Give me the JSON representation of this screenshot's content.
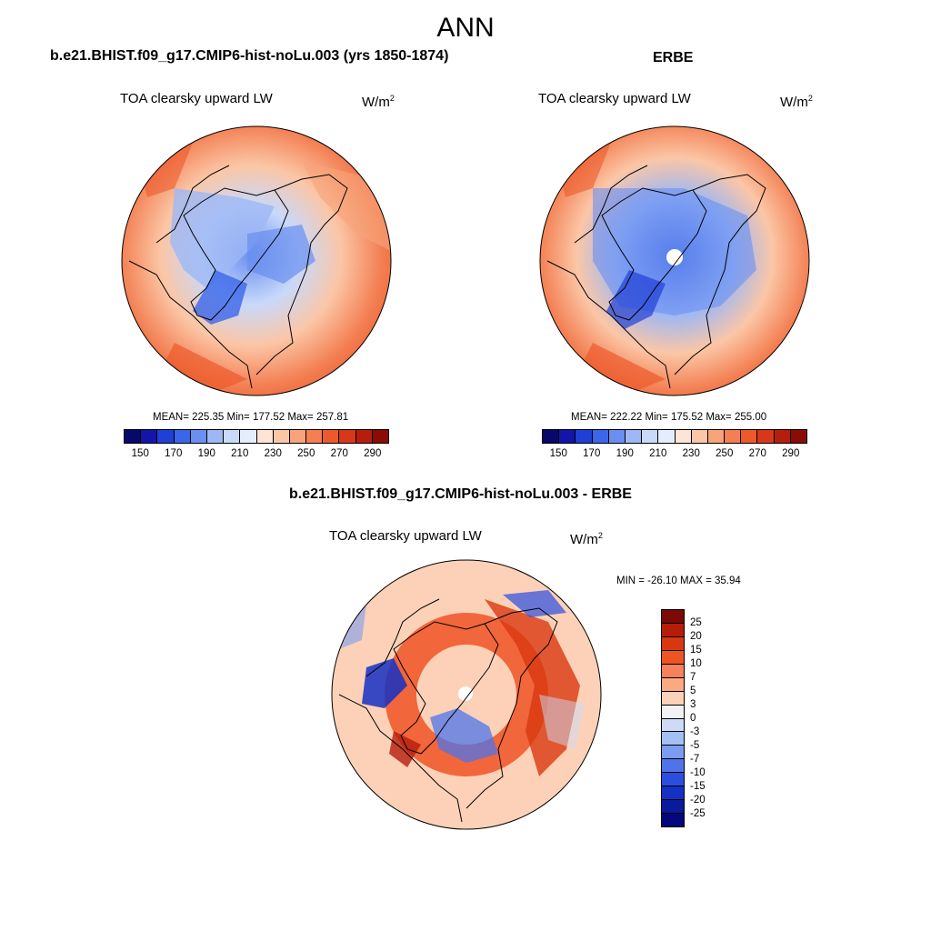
{
  "figure": {
    "title": "ANN"
  },
  "panels": [
    {
      "title": "b.e21.BHIST.f09_g17.CMIP6-hist-noLu.003 (yrs 1850-1874)",
      "variable": "TOA clearsky upward LW",
      "units": "W/m",
      "units_superscript": "2",
      "stats": "MEAN= 225.35  Min= 177.52  Max= 257.81",
      "colorbar_ticks": [
        "150",
        "170",
        "190",
        "210",
        "230",
        "250",
        "270",
        "290"
      ]
    },
    {
      "title": "ERBE",
      "variable": "TOA clearsky upward LW",
      "units": "W/m",
      "units_superscript": "2",
      "stats": "MEAN= 222.22  Min= 175.52  Max= 255.00",
      "colorbar_ticks": [
        "150",
        "170",
        "190",
        "210",
        "230",
        "250",
        "270",
        "290"
      ]
    },
    {
      "title": "b.e21.BHIST.f09_g17.CMIP6-hist-noLu.003 - ERBE",
      "variable": "TOA clearsky upward LW",
      "units": "W/m",
      "units_superscript": "2",
      "stats": "MIN = -26.10 MAX =  35.94",
      "colorbar_ticks": [
        "25",
        "20",
        "15",
        "10",
        "7",
        "5",
        "3",
        "0",
        "-3",
        "-5",
        "-7",
        "-10",
        "-15",
        "-20",
        "-25"
      ]
    }
  ],
  "colors": {
    "sequential": [
      "#08086b",
      "#1414a8",
      "#1f3fd6",
      "#3a66ea",
      "#6a8ff0",
      "#9db8f5",
      "#c8d9fa",
      "#e3eefc",
      "#fde4d4",
      "#fbc6a6",
      "#f7a47a",
      "#f37f52",
      "#ec5a2c",
      "#d8381a",
      "#b51e0d",
      "#8a0c05"
    ],
    "diverging": [
      "#7a0a03",
      "#b51d0a",
      "#d9380f",
      "#ef5425",
      "#f7815a",
      "#fba983",
      "#fcd1b7",
      "#f2f2f6",
      "#ccdcf6",
      "#a4c0f3",
      "#7b9cef",
      "#4f74ea",
      "#2a4fe0",
      "#1530c4",
      "#0a1a9c",
      "#03087a"
    ]
  }
}
